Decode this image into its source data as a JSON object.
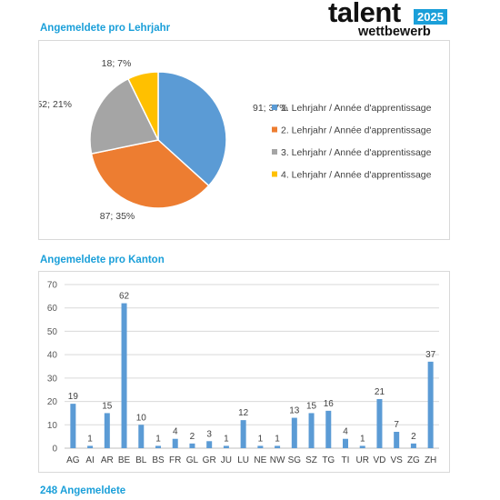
{
  "logo": {
    "word": "talent",
    "year": "2025",
    "sub": "wettbewerb"
  },
  "pie_title": "Angemeldete pro Lehrjahr",
  "bar_title": "Angemeldete pro Kanton",
  "total_label": "248 Angemeldete",
  "colors": {
    "accent": "#1a9fd9",
    "bar": "#5b9bd5"
  },
  "chart_data": [
    {
      "type": "pie",
      "title": "Angemeldete pro Lehrjahr",
      "legend_position": "right",
      "labels": [
        "1. Lehrjahr / Année d'apprentissage",
        "2. Lehrjahr / Année d'apprentissage",
        "3. Lehrjahr / Année d'apprentissage",
        "4. Lehrjahr / Année d'apprentissage"
      ],
      "values": [
        91,
        87,
        52,
        18
      ],
      "data_labels": [
        "91; 37%",
        "87; 35%",
        "52; 21%",
        "18; 7%"
      ],
      "colors": [
        "#5b9bd5",
        "#ed7d31",
        "#a5a5a5",
        "#ffc000"
      ]
    },
    {
      "type": "bar",
      "title": "Angemeldete pro Kanton",
      "categories": [
        "AG",
        "AI",
        "AR",
        "BE",
        "BL",
        "BS",
        "FR",
        "GL",
        "GR",
        "JU",
        "LU",
        "NE",
        "NW",
        "SG",
        "SZ",
        "TG",
        "TI",
        "UR",
        "VD",
        "VS",
        "ZG",
        "ZH"
      ],
      "values": [
        19,
        1,
        15,
        62,
        10,
        1,
        4,
        2,
        3,
        1,
        12,
        1,
        1,
        13,
        15,
        16,
        4,
        1,
        21,
        7,
        2,
        37
      ],
      "ylim": [
        0,
        70
      ],
      "yticks": [
        0,
        10,
        20,
        30,
        40,
        50,
        60,
        70
      ],
      "grid": true,
      "color": "#5b9bd5"
    }
  ]
}
